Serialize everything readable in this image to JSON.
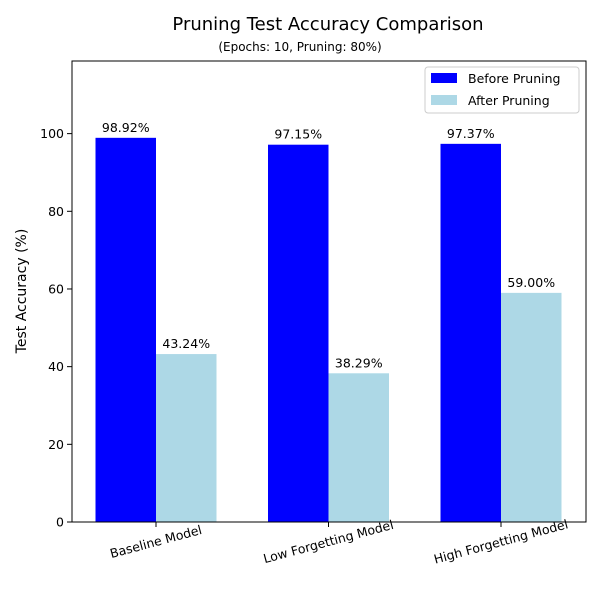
{
  "chart_data": {
    "type": "bar",
    "title": "Pruning Test Accuracy Comparison",
    "subtitle": "(Epochs: 10, Pruning: 80%)",
    "xlabel": "",
    "ylabel": "Test Accuracy (%)",
    "ylim": [
      0,
      118.7
    ],
    "yticks": [
      0,
      20,
      40,
      60,
      80,
      100
    ],
    "categories": [
      "Baseline Model",
      "Low Forgetting Model",
      "High Forgetting Model"
    ],
    "series": [
      {
        "name": "Before Pruning",
        "color": "#0000ff",
        "values": [
          98.92,
          97.15,
          97.37
        ],
        "labels": [
          "98.92%",
          "97.15%",
          "97.37%"
        ]
      },
      {
        "name": "After Pruning",
        "color": "#add8e6",
        "values": [
          43.24,
          38.29,
          59.0
        ],
        "labels": [
          "43.24%",
          "38.29%",
          "59.00%"
        ]
      }
    ],
    "legend": "top-right",
    "grid": false
  }
}
